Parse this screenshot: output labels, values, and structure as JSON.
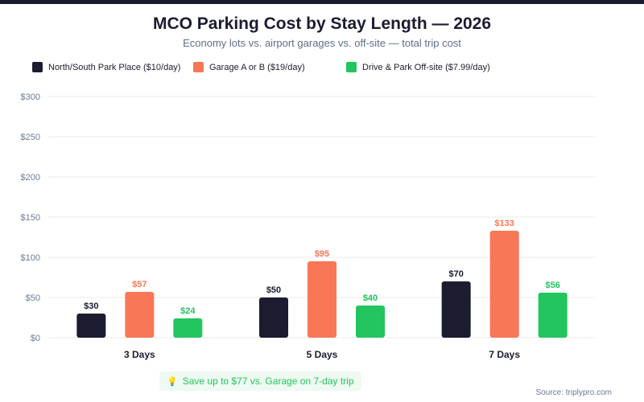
{
  "header": {
    "title": "MCO Parking Cost by Stay Length — 2026",
    "subtitle": "Economy lots vs. airport garages vs. off-site — total trip cost"
  },
  "footer": {
    "callout": "Save up to $77 vs. Garage on 7-day trip",
    "callout_icon": "lightbulb-icon",
    "source": "Source: triplypro.com"
  },
  "colors": {
    "economy": "#1b1c30",
    "garage": "#f97656",
    "offsite": "#22c55e",
    "grid": "#e9ebef",
    "tick": "#6b7b91"
  },
  "chart_data": {
    "type": "bar",
    "title": "MCO Parking Cost by Stay Length — 2026",
    "subtitle": "Economy lots vs. airport garages vs. off-site — total trip cost",
    "categories": [
      "3 Days",
      "5 Days",
      "7 Days"
    ],
    "series": [
      {
        "name": "North/South Park Place ($10/day)",
        "color": "#1b1c30",
        "values": [
          30,
          50,
          70
        ],
        "labels": [
          "$30",
          "$50",
          "$70"
        ]
      },
      {
        "name": "Garage A or B ($19/day)",
        "color": "#f97656",
        "values": [
          57,
          95,
          133
        ],
        "labels": [
          "$57",
          "$95",
          "$133"
        ]
      },
      {
        "name": "Drive & Park Off-site ($7.99/day)",
        "color": "#22c55e",
        "values": [
          24,
          40,
          56
        ],
        "labels": [
          "$24",
          "$40",
          "$56"
        ]
      }
    ],
    "yticks": [
      0,
      50,
      100,
      150,
      200,
      250,
      300
    ],
    "ytick_labels": [
      "$0",
      "$50",
      "$100",
      "$150",
      "$200",
      "$250",
      "$300"
    ],
    "ylim": [
      0,
      300
    ],
    "xlabel": "",
    "ylabel": "",
    "grid": true,
    "legend": "top-left"
  }
}
